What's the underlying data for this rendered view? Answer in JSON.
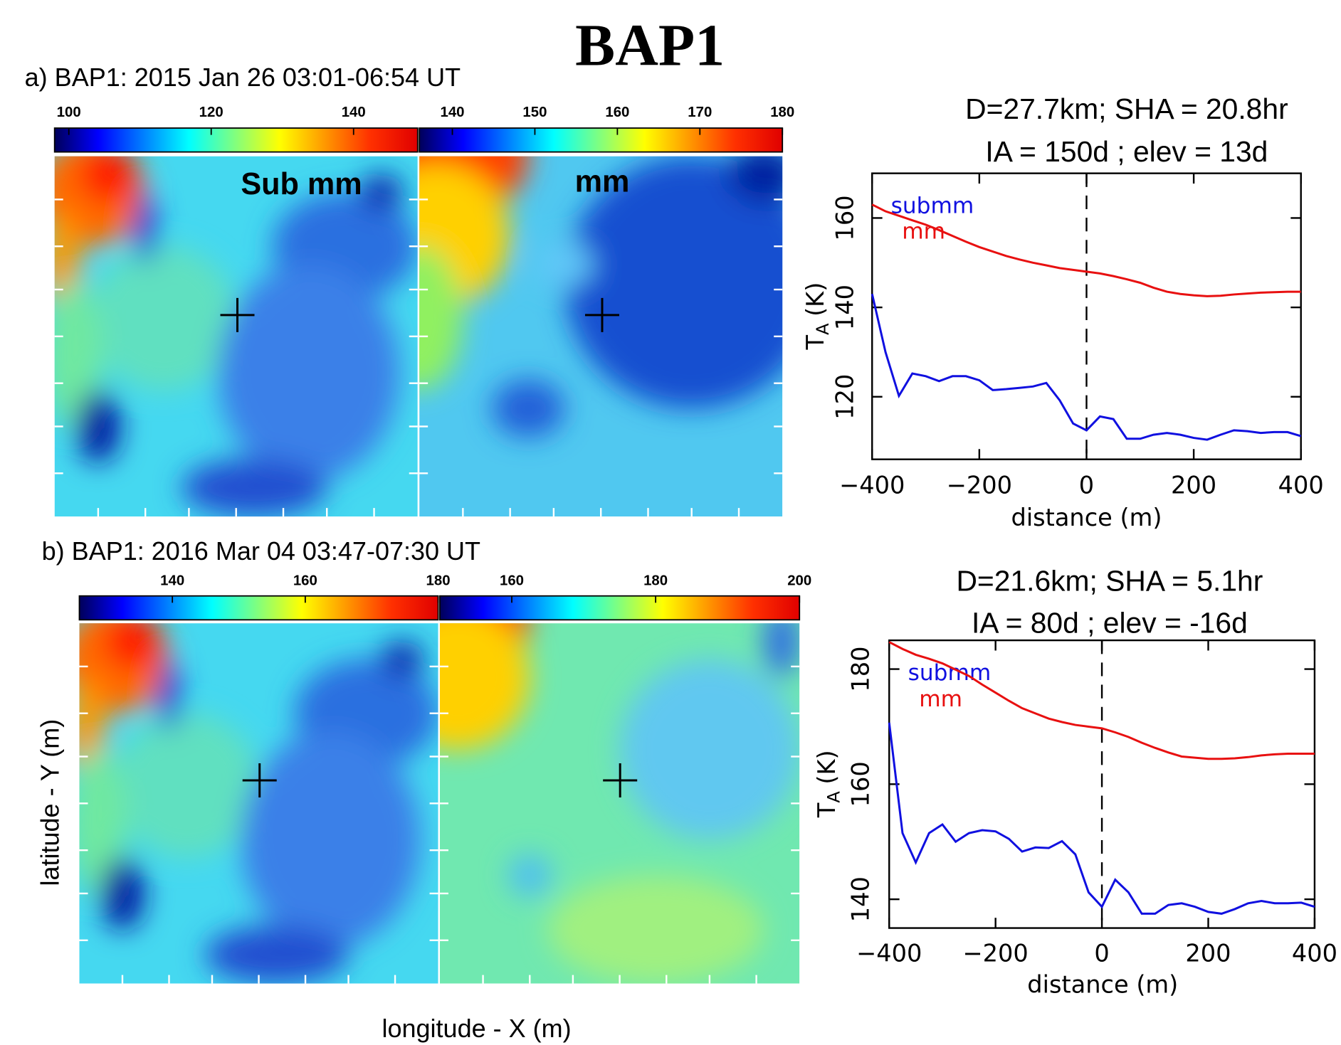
{
  "title": "BAP1",
  "captions": [
    "a) BAP1: 2015 Jan 26 03:01-06:54 UT",
    "b) BAP1: 2016 Mar 04 03:47-07:30 UT"
  ],
  "x_label": "longitude - X (m)",
  "y_label": "latitude - Y (m)",
  "chart_data": [
    {
      "type": "heatmap",
      "label": "Sub mm",
      "colorbar_lim": [
        98,
        149
      ],
      "colorbar_ticks": [
        100,
        120,
        140
      ]
    },
    {
      "type": "heatmap",
      "label": "mm",
      "colorbar_lim": [
        136,
        180
      ],
      "colorbar_ticks": [
        140,
        150,
        160,
        170,
        180
      ]
    },
    {
      "type": "line",
      "annotations": [
        "D=27.7km; SHA = 20.8hr",
        "IA = 150d  ; elev = 13d"
      ],
      "xlabel": "distance (m)",
      "ylabel": [
        "T",
        "A",
        "(K)"
      ],
      "x": [
        -400,
        -375,
        -350,
        -325,
        -300,
        -275,
        -250,
        -225,
        -200,
        -175,
        -150,
        -125,
        -100,
        -75,
        -50,
        -25,
        0,
        25,
        50,
        75,
        100,
        125,
        150,
        175,
        200,
        225,
        250,
        275,
        300,
        325,
        350,
        375,
        400
      ],
      "series": [
        {
          "name": "submm",
          "color": "#1010e0",
          "values": [
            143,
            130,
            120.2,
            125.2,
            124.6,
            123.5,
            124.6,
            124.6,
            123.7,
            121.5,
            121.7,
            122,
            122.3,
            123.1,
            119.2,
            114,
            112.5,
            115.6,
            115,
            110.6,
            110.6,
            111.5,
            111.9,
            111.5,
            110.8,
            110.4,
            111.5,
            112.5,
            112.3,
            111.9,
            112.1,
            112.1,
            111.2
          ]
        },
        {
          "name": "mm",
          "color": "#e81010",
          "values": [
            163,
            161.5,
            160.5,
            159.5,
            158.5,
            157.3,
            156,
            154.7,
            153.5,
            152.5,
            151.5,
            150.7,
            150,
            149.4,
            148.8,
            148.4,
            148,
            147.6,
            147,
            146.3,
            145.5,
            144.4,
            143.5,
            143,
            142.7,
            142.5,
            142.6,
            142.9,
            143.1,
            143.3,
            143.4,
            143.5,
            143.5
          ]
        }
      ],
      "xlim": [
        -400,
        400
      ],
      "ylim": [
        106,
        170
      ],
      "xticks": [
        {
          "value": -400,
          "label": "−400"
        },
        {
          "value": -200,
          "label": "−200"
        },
        0,
        200,
        400
      ],
      "yticks": [
        120,
        140,
        160
      ],
      "vline": 0
    },
    {
      "type": "heatmap",
      "colorbar_lim": [
        126,
        180
      ],
      "colorbar_ticks": [
        140,
        160,
        180
      ]
    },
    {
      "type": "heatmap",
      "colorbar_lim": [
        150,
        200
      ],
      "colorbar_ticks": [
        160,
        180,
        200
      ]
    },
    {
      "type": "line",
      "annotations": [
        "D=21.6km; SHA = 5.1hr",
        "IA = 80d  ; elev = -16d"
      ],
      "xlabel": "distance (m)",
      "ylabel": [
        "T",
        "A",
        "(K)"
      ],
      "x": [
        -400,
        -375,
        -350,
        -325,
        -300,
        -275,
        -250,
        -225,
        -200,
        -175,
        -150,
        -125,
        -100,
        -75,
        -50,
        -25,
        0,
        25,
        50,
        75,
        100,
        125,
        150,
        175,
        200,
        225,
        250,
        275,
        300,
        325,
        350,
        375,
        400
      ],
      "series": [
        {
          "name": "submm",
          "color": "#1010e0",
          "values": [
            170.7,
            151.5,
            146.4,
            151.5,
            153,
            150,
            151.5,
            152,
            151.8,
            150.5,
            148.3,
            149,
            148.9,
            150.1,
            147.8,
            141.2,
            138.7,
            143.4,
            141.2,
            137.5,
            137.5,
            139,
            139.3,
            138.7,
            137.8,
            137.5,
            138.3,
            139.3,
            139.7,
            139.3,
            139.3,
            139.4,
            138.7
          ]
        },
        {
          "name": "mm",
          "color": "#e81010",
          "values": [
            184.7,
            183.5,
            182.5,
            181.8,
            181,
            179.9,
            178.8,
            177.3,
            175.9,
            174.5,
            173.2,
            172.3,
            171.4,
            170.8,
            170.3,
            170,
            169.7,
            169,
            168.2,
            167.2,
            166.3,
            165.5,
            164.8,
            164.6,
            164.4,
            164.4,
            164.5,
            164.7,
            165,
            165.2,
            165.3,
            165.3,
            165.3
          ]
        }
      ],
      "xlim": [
        -400,
        400
      ],
      "ylim": [
        135,
        185
      ],
      "xticks": [
        {
          "value": -400,
          "label": "−400"
        },
        {
          "value": -200,
          "label": "−200"
        },
        0,
        200,
        400
      ],
      "yticks": [
        140,
        160,
        180
      ],
      "vline": 0
    }
  ]
}
